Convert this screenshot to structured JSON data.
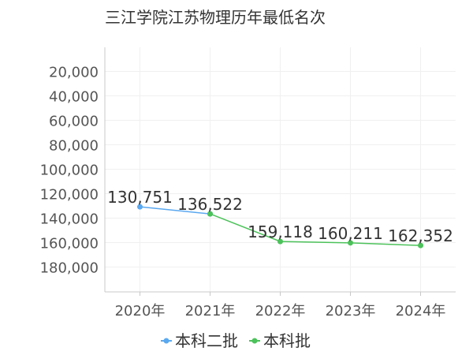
{
  "chart_data": {
    "type": "line",
    "title": "三江学院江苏物理历年最低名次",
    "xlabel": "",
    "ylabel": "",
    "categories": [
      "2020年",
      "2021年",
      "2022年",
      "2023年",
      "2024年"
    ],
    "y_axis": {
      "inverted": true,
      "range": [
        0,
        200000
      ],
      "tick_values": [
        20000,
        40000,
        60000,
        80000,
        100000,
        120000,
        140000,
        160000,
        180000
      ],
      "tick_labels": [
        "20,000",
        "40,000",
        "60,000",
        "80,000",
        "100,000",
        "120,000",
        "140,000",
        "160,000",
        "180,000"
      ]
    },
    "grid": true,
    "legend_position": "bottom-center",
    "series": [
      {
        "name": "本科二批",
        "color": "#5aa8f0",
        "values": [
          130751,
          136522,
          null,
          null,
          null
        ],
        "data_labels": [
          "130,751",
          "136,522",
          null,
          null,
          null
        ]
      },
      {
        "name": "本科批",
        "color": "#4cc25a",
        "values": [
          null,
          136522,
          159118,
          160211,
          162352
        ],
        "data_labels": [
          null,
          null,
          "159,118",
          "160,211",
          "162,352"
        ]
      }
    ]
  }
}
